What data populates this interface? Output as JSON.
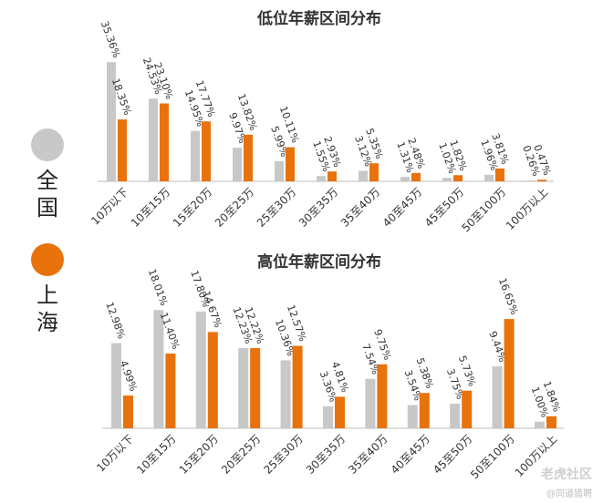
{
  "legend": {
    "items": [
      {
        "name": "全国",
        "color": "#c8c8c8"
      },
      {
        "name": "上海",
        "color": "#e8720c"
      }
    ]
  },
  "watermark": {
    "main": "老虎社区",
    "sub": "@同道猎聘"
  },
  "chart_data": [
    {
      "type": "bar",
      "title": "低位年薪区间分布",
      "categories": [
        "10万以下",
        "10至15万",
        "15至20万",
        "20至25万",
        "25至30万",
        "30至35万",
        "35至40万",
        "40至45万",
        "45至50万",
        "50至100万",
        "100万以上"
      ],
      "series": [
        {
          "name": "全国",
          "values": [
            35.36,
            24.53,
            14.95,
            9.97,
            5.99,
            1.55,
            3.12,
            1.31,
            1.02,
            1.96,
            0.26
          ],
          "labels": [
            "35.36%",
            "24.53%",
            "14.95%",
            "9.97%",
            "5.99%",
            "1.55%",
            "3.12%",
            "1.31%",
            "1.02%",
            "1.96%",
            "0.26%"
          ]
        },
        {
          "name": "上海",
          "values": [
            18.35,
            23.1,
            17.77,
            13.82,
            10.11,
            2.93,
            5.35,
            2.48,
            1.82,
            3.81,
            0.47
          ],
          "labels": [
            "18.35%",
            "23.10%",
            "17.77%",
            "13.82%",
            "10.11%",
            "2.93%",
            "5.35%",
            "2.48%",
            "1.82%",
            "3.81%",
            "0.47%"
          ]
        }
      ]
    },
    {
      "type": "bar",
      "title": "高位年薪区间分布",
      "categories": [
        "10万以下",
        "10至15万",
        "15至20万",
        "20至25万",
        "25至30万",
        "30至35万",
        "35至40万",
        "40至45万",
        "45至50万",
        "50至100万",
        "100万以上"
      ],
      "series": [
        {
          "name": "全国",
          "values": [
            12.98,
            18.01,
            17.8,
            12.23,
            10.36,
            3.36,
            7.54,
            3.54,
            3.75,
            9.44,
            1.0
          ],
          "labels": [
            "12.98%",
            "18.01%",
            "17.80%",
            "12.23%",
            "10.36%",
            "3.36%",
            "7.54%",
            "3.54%",
            "3.75%",
            "9.44%",
            "1.00%"
          ]
        },
        {
          "name": "上海",
          "values": [
            4.99,
            11.4,
            14.67,
            12.22,
            12.57,
            4.81,
            9.75,
            5.38,
            5.73,
            16.65,
            1.84
          ],
          "labels": [
            "4.99%",
            "11.40%",
            "14.67%",
            "12.22%",
            "12.57%",
            "4.81%",
            "9.75%",
            "5.38%",
            "5.73%",
            "16.65%",
            "1.84%"
          ]
        }
      ]
    }
  ]
}
